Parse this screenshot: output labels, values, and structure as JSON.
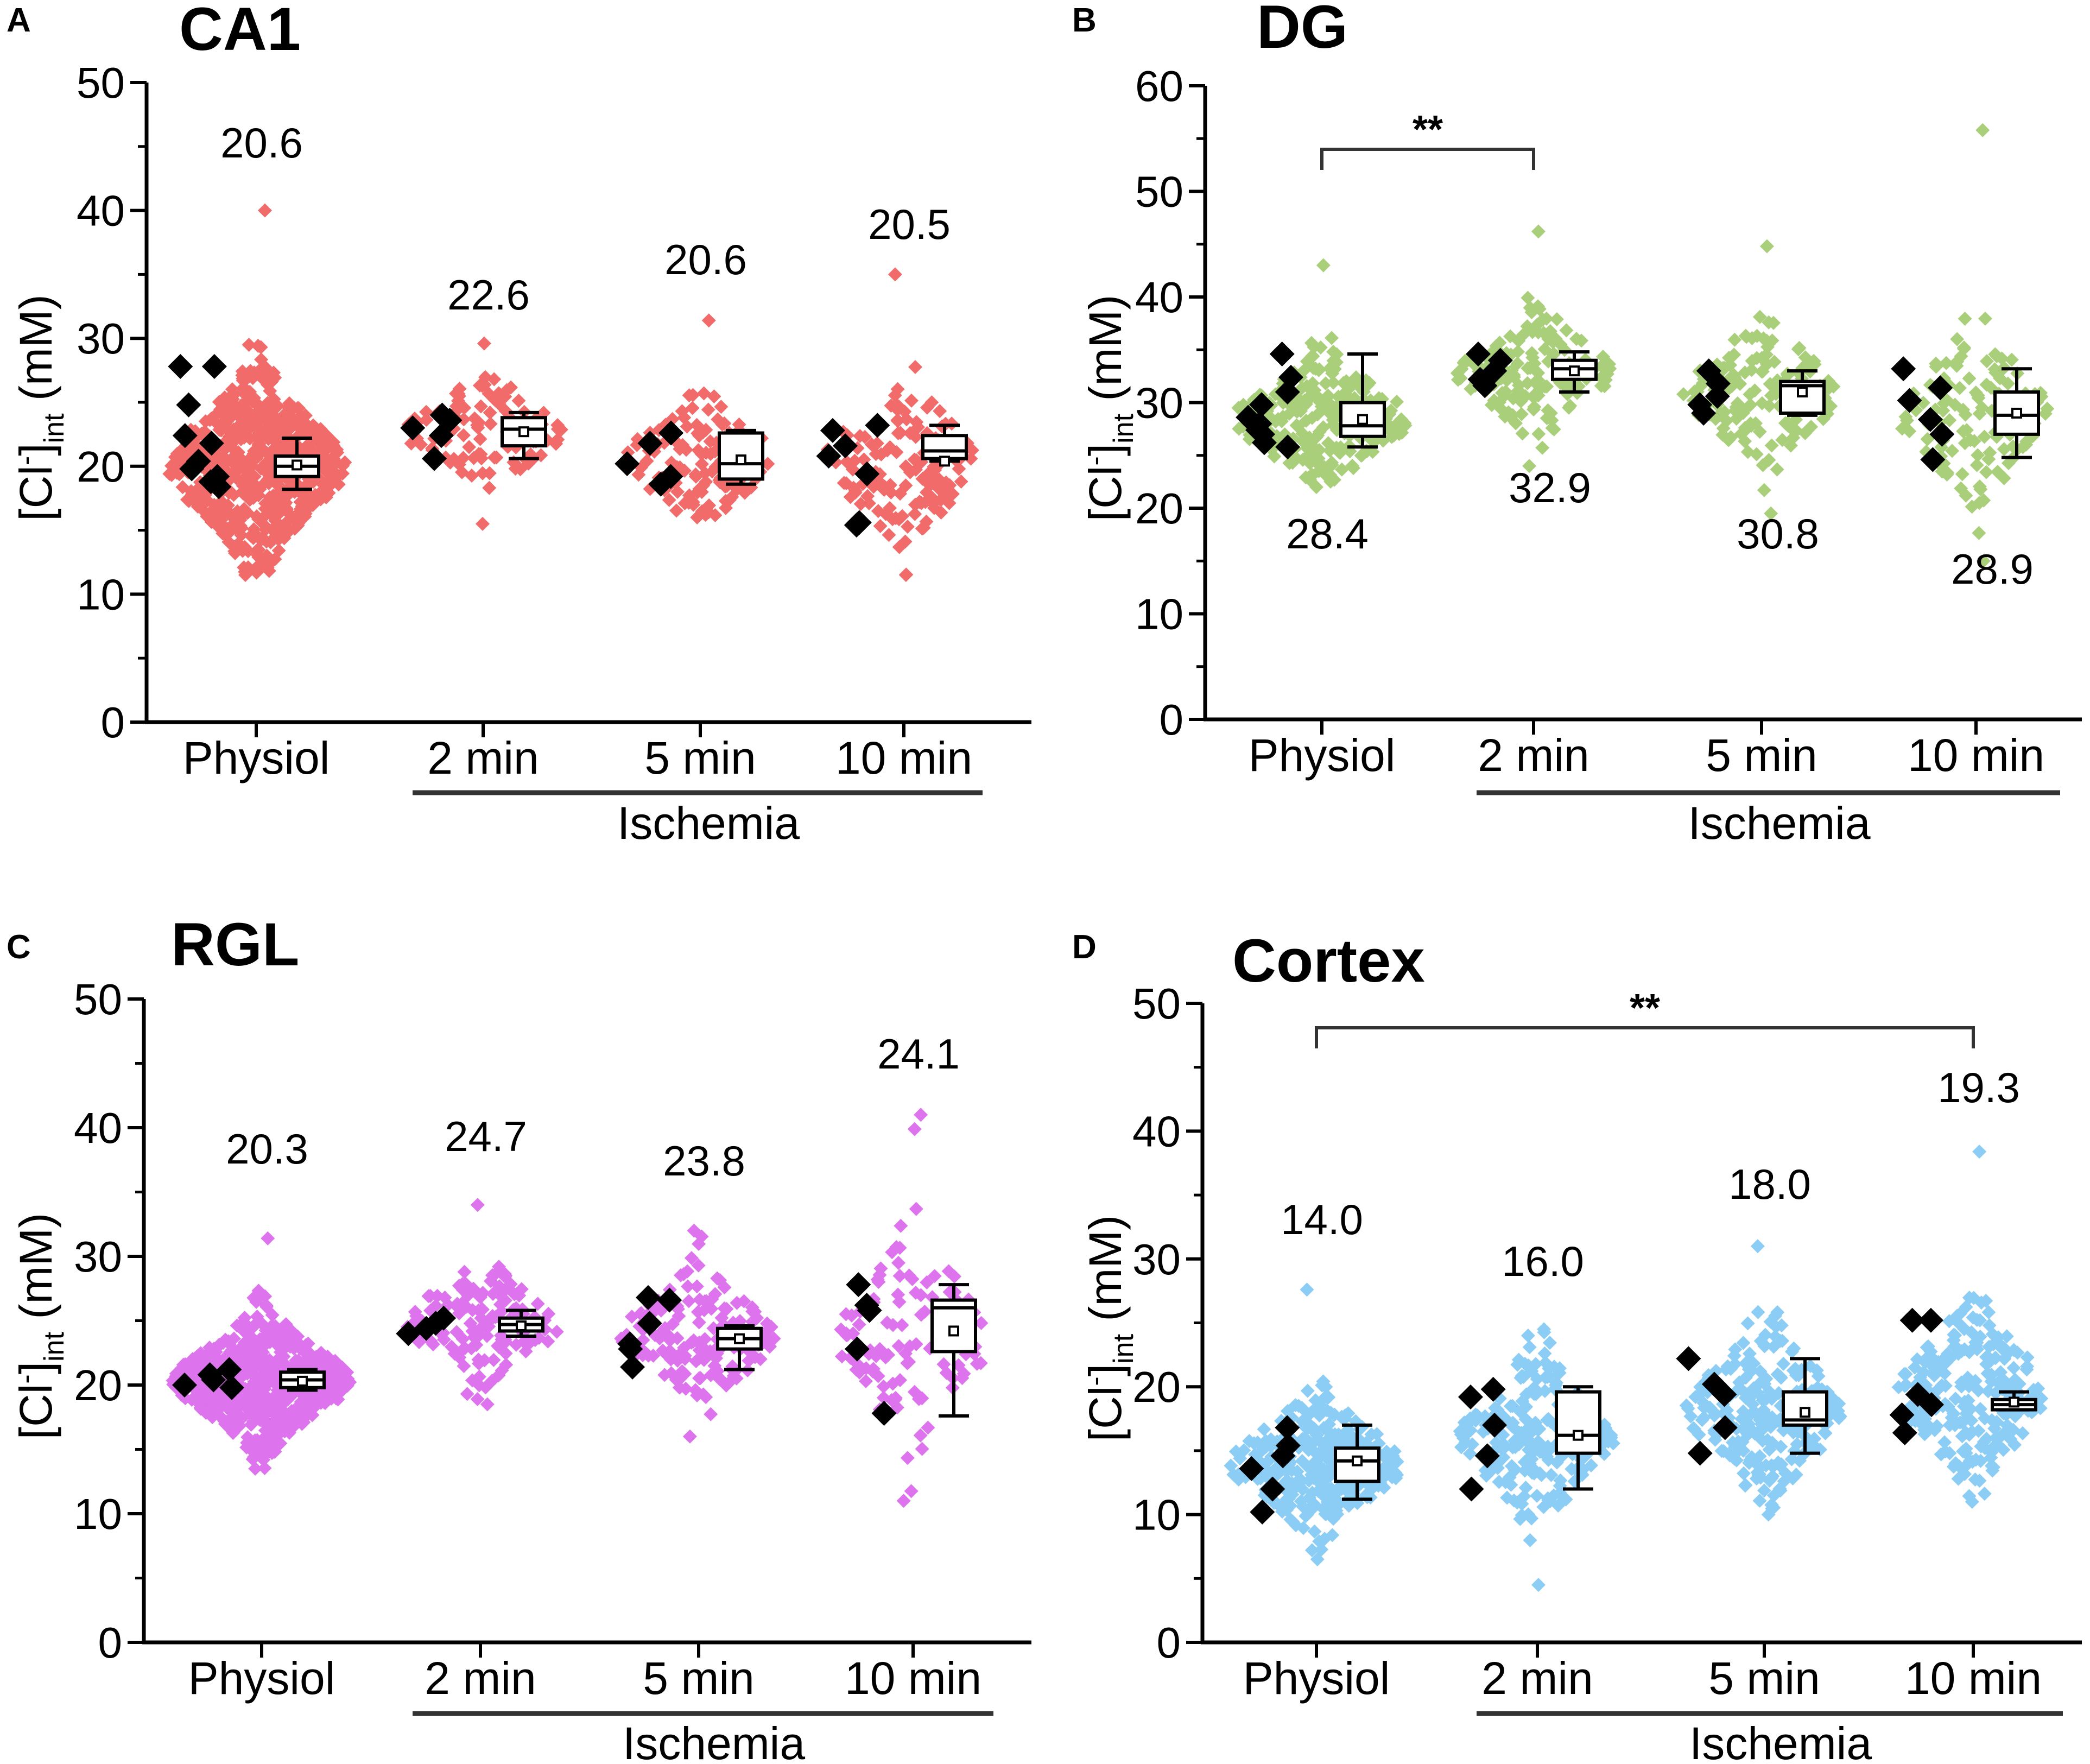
{
  "colors": {
    "CA1": "#f26b6b",
    "DG": "#a9cf7a",
    "RGL": "#de73ee",
    "Cortex": "#8ccdf5",
    "cells": "#000000"
  },
  "chart_data": [
    {
      "type": "scatter",
      "panel": "A",
      "title": "CA1",
      "ylabel": {
        "bracket_open": "[Cl",
        "superscript": "-",
        "bracket_close": "]",
        "subscript": "int",
        "unit": " (mM)"
      },
      "ylim": [
        0,
        50
      ],
      "yticks": [
        "0",
        "10",
        "20",
        "30",
        "40",
        "50"
      ],
      "categories": [
        "Physiol",
        "2 min",
        "5 min",
        "10 min"
      ],
      "group_label": "Ischemia",
      "color_key": "CA1",
      "medians": [
        "20.6",
        "22.6",
        "20.6",
        "20.5"
      ],
      "significance": [],
      "box": [
        {
          "min": 18.2,
          "q1": 19.2,
          "median": 20.0,
          "mean": 20.1,
          "q3": 20.8,
          "max": 22.2
        },
        {
          "min": 20.6,
          "q1": 21.6,
          "median": 22.9,
          "mean": 22.7,
          "q3": 23.8,
          "max": 24.2
        },
        {
          "min": 18.6,
          "q1": 19.0,
          "median": 20.2,
          "mean": 20.5,
          "q3": 22.6,
          "max": 22.8
        },
        {
          "min": 20.4,
          "q1": 20.6,
          "median": 21.2,
          "mean": 20.4,
          "q3": 22.4,
          "max": 23.2
        }
      ],
      "cells": [
        [
          27.8,
          27.8,
          24.8,
          22.4,
          21.8,
          20.4,
          19.8,
          19.2,
          18.8,
          18.4
        ],
        [
          24.0,
          23.6,
          23.0,
          22.4,
          20.6
        ],
        [
          22.6,
          21.8,
          20.2,
          19.2,
          18.6
        ],
        [
          23.2,
          22.8,
          21.6,
          20.8,
          19.4,
          15.4,
          15.6
        ]
      ],
      "scatter": [
        {
          "center": 20.0,
          "sd": 4.0,
          "min": 11.5,
          "max": 40.0,
          "n": 650
        },
        {
          "center": 22.6,
          "sd": 2.6,
          "min": 15.5,
          "max": 29.6,
          "n": 110
        },
        {
          "center": 20.6,
          "sd": 2.8,
          "min": 16.0,
          "max": 31.4,
          "n": 130
        },
        {
          "center": 20.5,
          "sd": 3.6,
          "min": 11.5,
          "max": 35.0,
          "n": 130
        }
      ]
    },
    {
      "type": "scatter",
      "panel": "B",
      "title": "DG",
      "ylabel": {
        "bracket_open": "[Cl",
        "superscript": "-",
        "bracket_close": "]",
        "subscript": "int",
        "unit": " (mM)"
      },
      "ylim": [
        0,
        60
      ],
      "yticks": [
        "0",
        "10",
        "20",
        "30",
        "40",
        "50",
        "60"
      ],
      "categories": [
        "Physiol",
        "2 min",
        "5 min",
        "10 min"
      ],
      "group_label": "Ischemia",
      "color_key": "DG",
      "medians": [
        "28.4",
        "32.9",
        "30.8",
        "28.9"
      ],
      "significance": [
        {
          "from": 0,
          "to": 1,
          "label": "**"
        }
      ],
      "box": [
        {
          "min": 25.8,
          "q1": 26.8,
          "median": 27.8,
          "mean": 28.4,
          "q3": 30.0,
          "max": 34.6
        },
        {
          "min": 31.0,
          "q1": 32.2,
          "median": 33.2,
          "mean": 33.0,
          "q3": 34.0,
          "max": 34.8
        },
        {
          "min": 28.8,
          "q1": 29.0,
          "median": 31.6,
          "mean": 31.0,
          "q3": 32.0,
          "max": 33.0
        },
        {
          "min": 24.8,
          "q1": 27.0,
          "median": 28.8,
          "mean": 29.0,
          "q3": 31.0,
          "max": 33.2
        }
      ],
      "cells": [
        [
          34.6,
          32.4,
          31.0,
          29.8,
          28.6,
          28.0,
          27.4,
          27.0,
          26.2,
          25.8
        ],
        [
          34.6,
          34.0,
          33.0,
          32.2,
          31.6
        ],
        [
          33.0,
          31.8,
          30.6,
          29.8,
          29.0
        ],
        [
          33.2,
          31.4,
          30.2,
          28.4,
          27.0,
          24.6
        ]
      ],
      "scatter": [
        {
          "center": 28.4,
          "sd": 3.4,
          "min": 22.0,
          "max": 43.0,
          "n": 260
        },
        {
          "center": 32.9,
          "sd": 3.4,
          "min": 24.0,
          "max": 46.2,
          "n": 160
        },
        {
          "center": 30.8,
          "sd": 4.0,
          "min": 19.5,
          "max": 44.8,
          "n": 150
        },
        {
          "center": 28.9,
          "sd": 4.5,
          "min": 15.0,
          "max": 55.8,
          "n": 120
        }
      ]
    },
    {
      "type": "scatter",
      "panel": "C",
      "title": "RGL",
      "ylabel": {
        "bracket_open": "[Cl",
        "superscript": "-",
        "bracket_close": "]",
        "subscript": "int",
        "unit": " (mM)"
      },
      "ylim": [
        0,
        50
      ],
      "yticks": [
        "0",
        "10",
        "20",
        "30",
        "40",
        "50"
      ],
      "categories": [
        "Physiol",
        "2 min",
        "5 min",
        "10 min"
      ],
      "group_label": "Ischemia",
      "color_key": "RGL",
      "medians": [
        "20.3",
        "24.7",
        "23.8",
        "24.1"
      ],
      "significance": [],
      "box": [
        {
          "min": 19.6,
          "q1": 19.8,
          "median": 20.4,
          "mean": 20.3,
          "q3": 21.0,
          "max": 21.2
        },
        {
          "min": 23.8,
          "q1": 24.2,
          "median": 24.7,
          "mean": 24.6,
          "q3": 25.2,
          "max": 25.8
        },
        {
          "min": 21.2,
          "q1": 22.8,
          "median": 23.6,
          "mean": 23.6,
          "q3": 24.4,
          "max": 24.6
        },
        {
          "min": 17.6,
          "q1": 22.6,
          "median": 26.0,
          "mean": 24.2,
          "q3": 26.6,
          "max": 27.8
        }
      ],
      "cells": [
        [
          21.2,
          20.8,
          20.4,
          20.0,
          19.8
        ],
        [
          25.2,
          24.8,
          24.4,
          24.0
        ],
        [
          26.6,
          24.8,
          23.2,
          22.8,
          21.4,
          26.8
        ],
        [
          27.8,
          26.2,
          25.8,
          22.8,
          17.8
        ]
      ],
      "scatter": [
        {
          "center": 20.3,
          "sd": 2.8,
          "min": 13.5,
          "max": 31.4,
          "n": 650
        },
        {
          "center": 24.7,
          "sd": 2.7,
          "min": 18.5,
          "max": 34.0,
          "n": 130
        },
        {
          "center": 23.8,
          "sd": 3.0,
          "min": 16.0,
          "max": 32.0,
          "n": 170
        },
        {
          "center": 24.1,
          "sd": 5.0,
          "min": 11.0,
          "max": 41.0,
          "n": 110
        }
      ]
    },
    {
      "type": "scatter",
      "panel": "D",
      "title": "Cortex",
      "ylabel": {
        "bracket_open": "[Cl",
        "superscript": "-",
        "bracket_close": "]",
        "subscript": "int",
        "unit": " (mM)"
      },
      "ylim": [
        0,
        50
      ],
      "yticks": [
        "0",
        "10",
        "20",
        "30",
        "40",
        "50"
      ],
      "categories": [
        "Physiol",
        "2 min",
        "5 min",
        "10 min"
      ],
      "group_label": "Ischemia",
      "color_key": "Cortex",
      "medians": [
        "14.0",
        "16.0",
        "18.0",
        "19.3"
      ],
      "significance": [
        {
          "from": 0,
          "to": 3,
          "label": "**"
        }
      ],
      "box": [
        {
          "min": 11.2,
          "q1": 12.6,
          "median": 14.2,
          "mean": 14.2,
          "q3": 15.2,
          "max": 17.0
        },
        {
          "min": 12.0,
          "q1": 14.8,
          "median": 16.2,
          "mean": 16.2,
          "q3": 19.6,
          "max": 20.0
        },
        {
          "min": 14.8,
          "q1": 17.0,
          "median": 17.4,
          "mean": 18.0,
          "q3": 19.6,
          "max": 22.2
        },
        {
          "min": 18.2,
          "q1": 18.2,
          "median": 18.6,
          "mean": 18.8,
          "q3": 19.0,
          "max": 19.6
        }
      ],
      "cells": [
        [
          16.8,
          15.4,
          14.6,
          13.6,
          12.0,
          10.2
        ],
        [
          19.8,
          19.2,
          17.0,
          14.6,
          12.0
        ],
        [
          22.2,
          20.2,
          19.4,
          16.8,
          14.8
        ],
        [
          25.2,
          25.2,
          19.4,
          18.6,
          17.8,
          16.4
        ]
      ],
      "scatter": [
        {
          "center": 14.0,
          "sd": 2.9,
          "min": 6.5,
          "max": 27.6,
          "n": 330
        },
        {
          "center": 16.0,
          "sd": 3.6,
          "min": 4.5,
          "max": 24.5,
          "n": 220
        },
        {
          "center": 18.0,
          "sd": 4.0,
          "min": 10.0,
          "max": 31.0,
          "n": 240
        },
        {
          "center": 19.3,
          "sd": 4.0,
          "min": 11.0,
          "max": 38.4,
          "n": 230
        }
      ]
    }
  ]
}
